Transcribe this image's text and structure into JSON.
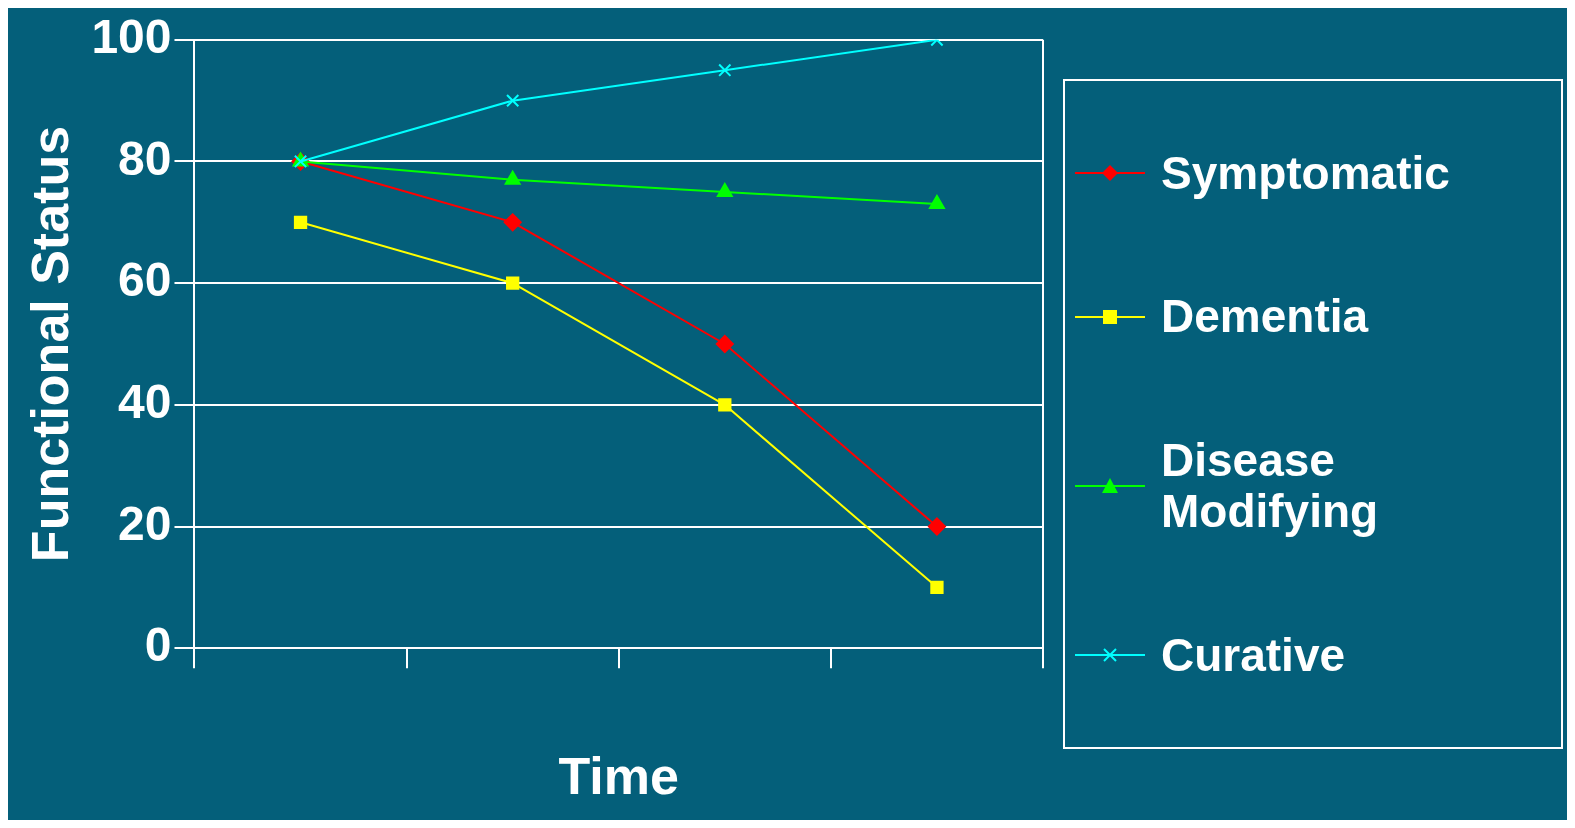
{
  "chart_data": {
    "type": "line",
    "xlabel": "Time",
    "ylabel": "Functional Status",
    "categories": [
      null,
      null,
      null,
      null
    ],
    "series": [
      {
        "name": "Symptomatic",
        "color": "#ff0000",
        "marker": "diamond",
        "values": [
          80,
          70,
          50,
          20
        ]
      },
      {
        "name": "Dementia",
        "color": "#ffff00",
        "marker": "square",
        "values": [
          70,
          60,
          40,
          10
        ]
      },
      {
        "name": "Disease Modifying",
        "color": "#00ff00",
        "marker": "triangle",
        "values": [
          80,
          77,
          75,
          73
        ]
      },
      {
        "name": "Curative",
        "color": "#00ffff",
        "marker": "cross",
        "values": [
          80,
          90,
          95,
          100
        ]
      }
    ],
    "ylim": [
      0,
      100
    ],
    "yticks": [
      0,
      20,
      40,
      60,
      80,
      100
    ],
    "grid": "y",
    "legend": "right"
  }
}
